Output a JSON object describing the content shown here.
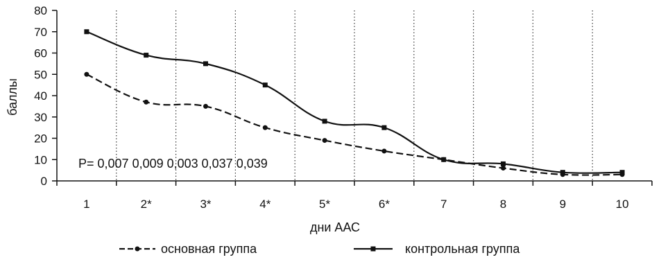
{
  "chart_data": {
    "type": "line",
    "title": "",
    "xlabel": "дни ААС",
    "ylabel": "баллы",
    "ylim": [
      0,
      80
    ],
    "yticks": [
      0,
      10,
      20,
      30,
      40,
      50,
      60,
      70,
      80
    ],
    "categories": [
      "1",
      "2*",
      "3*",
      "4*",
      "5*",
      "6*",
      "7",
      "8",
      "9",
      "10"
    ],
    "grid": "vertical dotted lines between categories",
    "legend_position": "bottom",
    "series": [
      {
        "name": "основная группа",
        "style": "dashed",
        "marker": "circle",
        "color": "#111111",
        "values": [
          50,
          37,
          35,
          25,
          19,
          14,
          10,
          6,
          3,
          3
        ]
      },
      {
        "name": "контрольная группа",
        "style": "solid",
        "marker": "square",
        "color": "#111111",
        "values": [
          70,
          59,
          55,
          45,
          28,
          25,
          10,
          8,
          4,
          4
        ]
      }
    ],
    "annotation": "P= 0,007 0,009 0,003 0,037 0,039"
  }
}
